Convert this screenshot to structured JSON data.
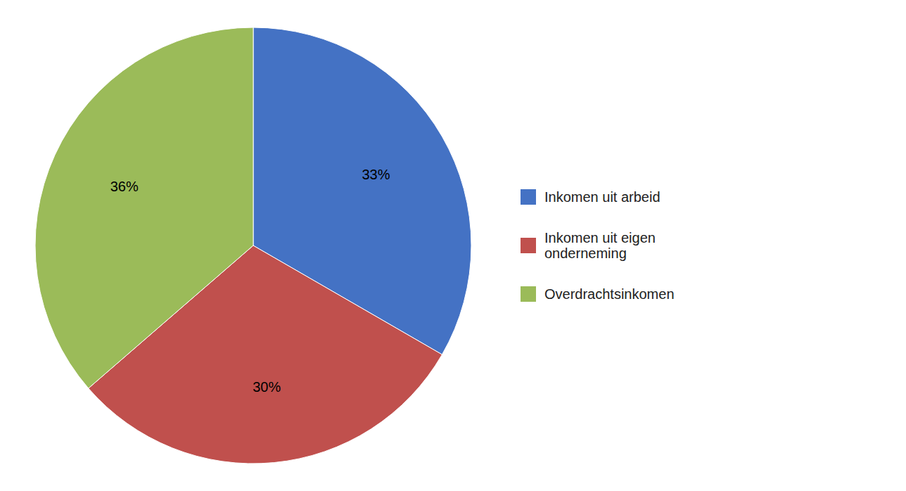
{
  "chart_data": {
    "type": "pie",
    "categories": [
      "Inkomen uit arbeid",
      "Inkomen uit eigen\nonderneming",
      "Overdrachtsinkomen"
    ],
    "values": [
      33,
      30,
      36
    ],
    "value_labels": [
      "33%",
      "30%",
      "36%"
    ],
    "colors": [
      "#4472C4",
      "#C0504D",
      "#9BBB59"
    ],
    "data_labels": true,
    "legend": "right"
  }
}
